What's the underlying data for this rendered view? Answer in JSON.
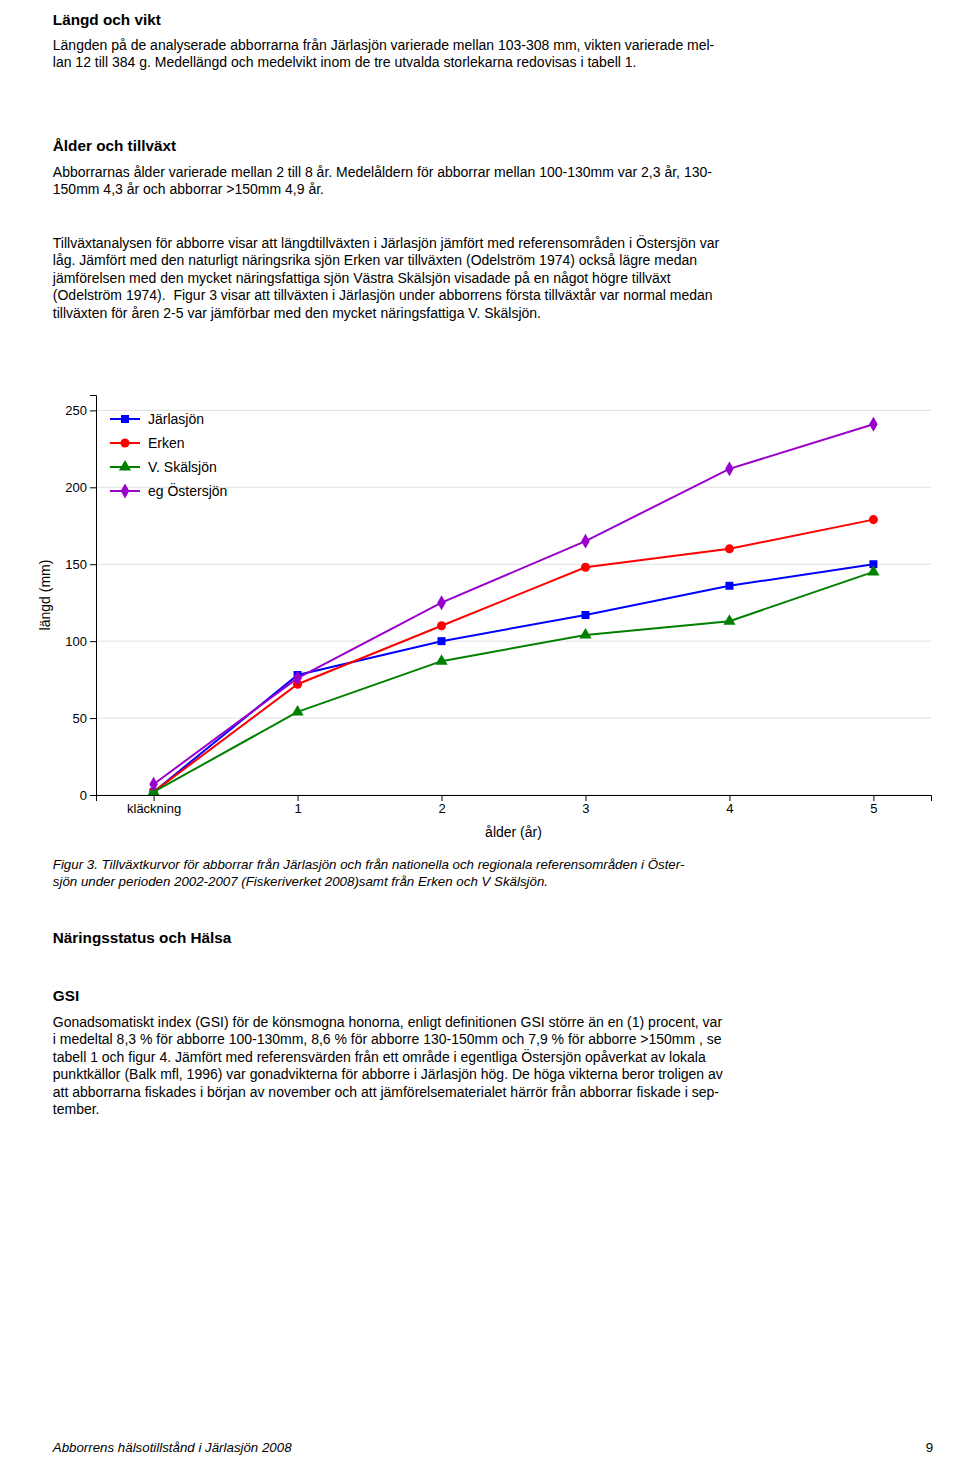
{
  "chart_data": {
    "type": "line",
    "x_label": "ålder (år)",
    "y_label": "längd (mm)",
    "categories": [
      "kläckning",
      "1",
      "2",
      "3",
      "4",
      "5"
    ],
    "series": [
      {
        "name": "Järlasjön",
        "color": "#0000FF",
        "marker": "square",
        "values": [
          2,
          78,
          100,
          117,
          136,
          150
        ]
      },
      {
        "name": "Erken",
        "color": "#FF0000",
        "marker": "circle",
        "values": [
          2,
          72,
          110,
          148,
          160,
          179
        ]
      },
      {
        "name": "V. Skälsjön",
        "color": "#008000",
        "marker": "triangle",
        "values": [
          2,
          54,
          87,
          104,
          113,
          145
        ]
      },
      {
        "name": "eg Östersjön",
        "color": "#9900CC",
        "marker": "diamond",
        "values": [
          7,
          76,
          125,
          165,
          212,
          241
        ]
      }
    ],
    "ylim": [
      0,
      260
    ],
    "yticks": [
      0,
      50,
      100,
      150,
      200,
      250
    ],
    "grid": "y",
    "legend": "upper-left"
  },
  "page": {
    "sections_top": [
      {
        "heading": "Längd och vikt",
        "paragraphs": [
          [
            "Längden på de analyserade abborrarna från Järlasjön varierade mellan 103-308 mm, vikten varierade mel-",
            "lan 12 till 384 g. Medellängd och medelvikt inom de tre utvalda storlekarna redovisas i tabell 1."
          ]
        ]
      },
      {
        "heading": "Ålder och tillväxt",
        "paragraphs": [
          [
            "Abborrarnas ålder varierade mellan 2 till 8 år. Medelåldern för abborrar mellan 100-130mm var 2,3 år, 130-",
            "150mm 4,3 år och abborrar >150mm 4,9 år."
          ],
          [
            "Tillväxtanalysen för abborre visar att längdtillväxten i Järlasjön jämfört med referensområden i Östersjön var",
            "låg. Jämfört med den naturligt näringsrika sjön Erken var tillväxten (Odelström 1974) också lägre medan",
            "jämförelsen med den mycket näringsfattiga sjön Västra Skälsjön visadade på en något högre tillväxt",
            "(Odelström 1974).  Figur 3 visar att tillväxten i Järlasjön under abborrens första tillväxtår var normal medan",
            "tillväxten för åren 2-5 var jämförbar med den mycket näringsfattiga V. Skälsjön."
          ]
        ]
      }
    ],
    "caption": [
      "Figur 3. Tillväxtkurvor för abborrar från Järlasjön och från nationella och regionala referensområden i Öster-",
      "sjön under perioden 2002-2007 (Fiskeriverket 2008)samt från Erken och V Skälsjön."
    ],
    "sections_bottom": [
      {
        "heading": "Näringsstatus och Hälsa"
      },
      {
        "heading": "GSI",
        "paragraphs": [
          [
            "Gonadsomatiskt index (GSI) för de könsmogna honorna, enligt definitionen GSI större än en (1) procent, var",
            "i medeltal 8,3 % för abborre 100-130mm, 8,6 % för abborre 130-150mm och 7,9 % för abborre >150mm , se",
            "tabell 1 och figur 4. Jämfört med referensvärden från ett område i egentliga Östersjön opåverkat av lokala",
            "punktkällor (Balk mfl, 1996) var gonadvikterna för abborre i Järlasjön hög. De höga vikterna beror troligen av",
            "att abborrarna fiskades i början av november och att jämförelsematerialet härrör från abborrar fiskade i sep-",
            "tember."
          ]
        ]
      }
    ],
    "footer_left": "Abborrens hälsotillstånd i Järlasjön 2008",
    "footer_right": "9"
  }
}
